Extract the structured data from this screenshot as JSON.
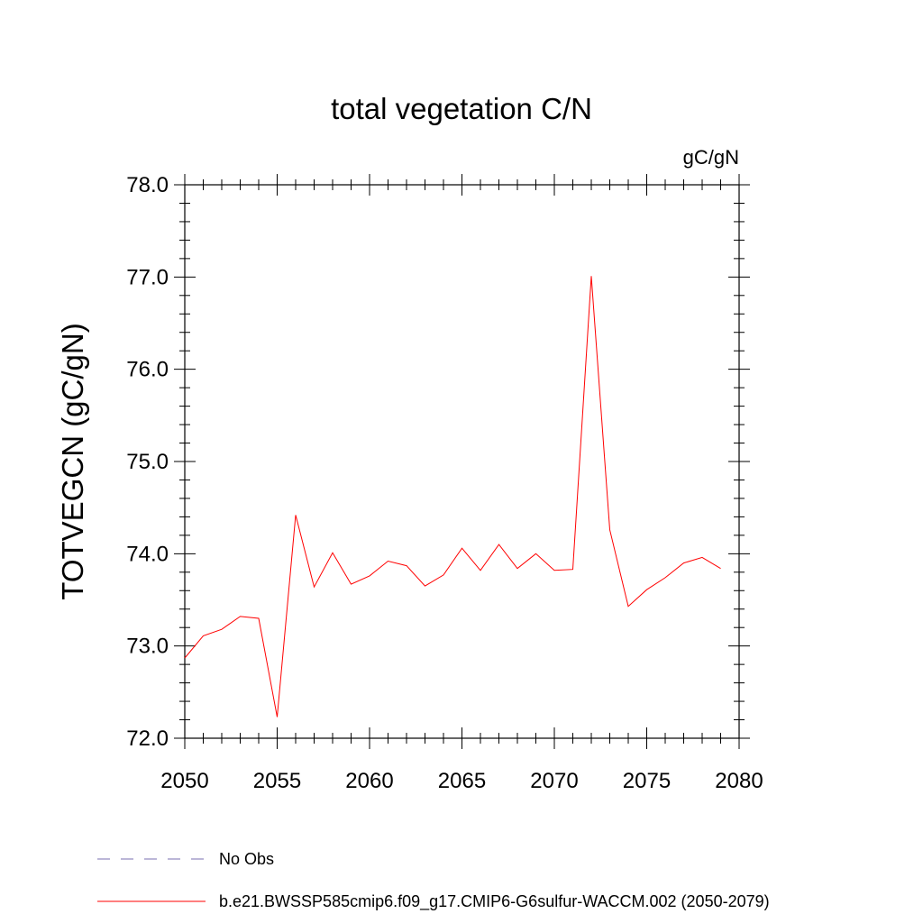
{
  "chart_data": {
    "type": "line",
    "title": "total vegetation C/N",
    "units": "gC/gN",
    "ylabel": "TOTVEGCN  (gC/gN)",
    "xlabel": "",
    "xlim": [
      2050,
      2080
    ],
    "ylim": [
      72.0,
      78.0
    ],
    "x_major_ticks": [
      2050,
      2055,
      2060,
      2065,
      2070,
      2075,
      2080
    ],
    "x_tick_labels": [
      "2050",
      "2055",
      "2060",
      "2065",
      "2070",
      "2075",
      "2080"
    ],
    "y_major_ticks": [
      72.0,
      73.0,
      74.0,
      75.0,
      76.0,
      77.0,
      78.0
    ],
    "y_tick_labels": [
      "72.0",
      "73.0",
      "74.0",
      "75.0",
      "76.0",
      "77.0",
      "78.0"
    ],
    "x_minor_step": 1,
    "y_minor_step": 0.2,
    "grid": false,
    "legend_position": "bottom-left",
    "series": [
      {
        "name": "b.e21.BWSSP585cmip6.f09_g17.CMIP6-G6sulfur-WACCM.002 (2050-2079)",
        "color": "#ff0000",
        "style": "solid",
        "x": [
          2050,
          2051,
          2052,
          2053,
          2054,
          2055,
          2056,
          2057,
          2058,
          2059,
          2060,
          2061,
          2062,
          2063,
          2064,
          2065,
          2066,
          2067,
          2068,
          2069,
          2070,
          2071,
          2072,
          2073,
          2074,
          2075,
          2076,
          2077,
          2078,
          2079
        ],
        "values": [
          72.87,
          73.11,
          73.18,
          73.32,
          73.3,
          72.23,
          74.42,
          73.64,
          74.01,
          73.67,
          73.76,
          73.92,
          73.87,
          73.65,
          73.77,
          74.06,
          73.82,
          74.1,
          73.84,
          74.0,
          73.82,
          73.83,
          77.01,
          74.26,
          73.43,
          73.61,
          73.74,
          73.9,
          73.96,
          73.84
        ]
      }
    ],
    "legend": [
      {
        "label": "No Obs",
        "color": "#7a6fb0",
        "style": "dashed"
      },
      {
        "label": "b.e21.BWSSP585cmip6.f09_g17.CMIP6-G6sulfur-WACCM.002 (2050-2079)",
        "color": "#ff0000",
        "style": "solid"
      }
    ]
  }
}
